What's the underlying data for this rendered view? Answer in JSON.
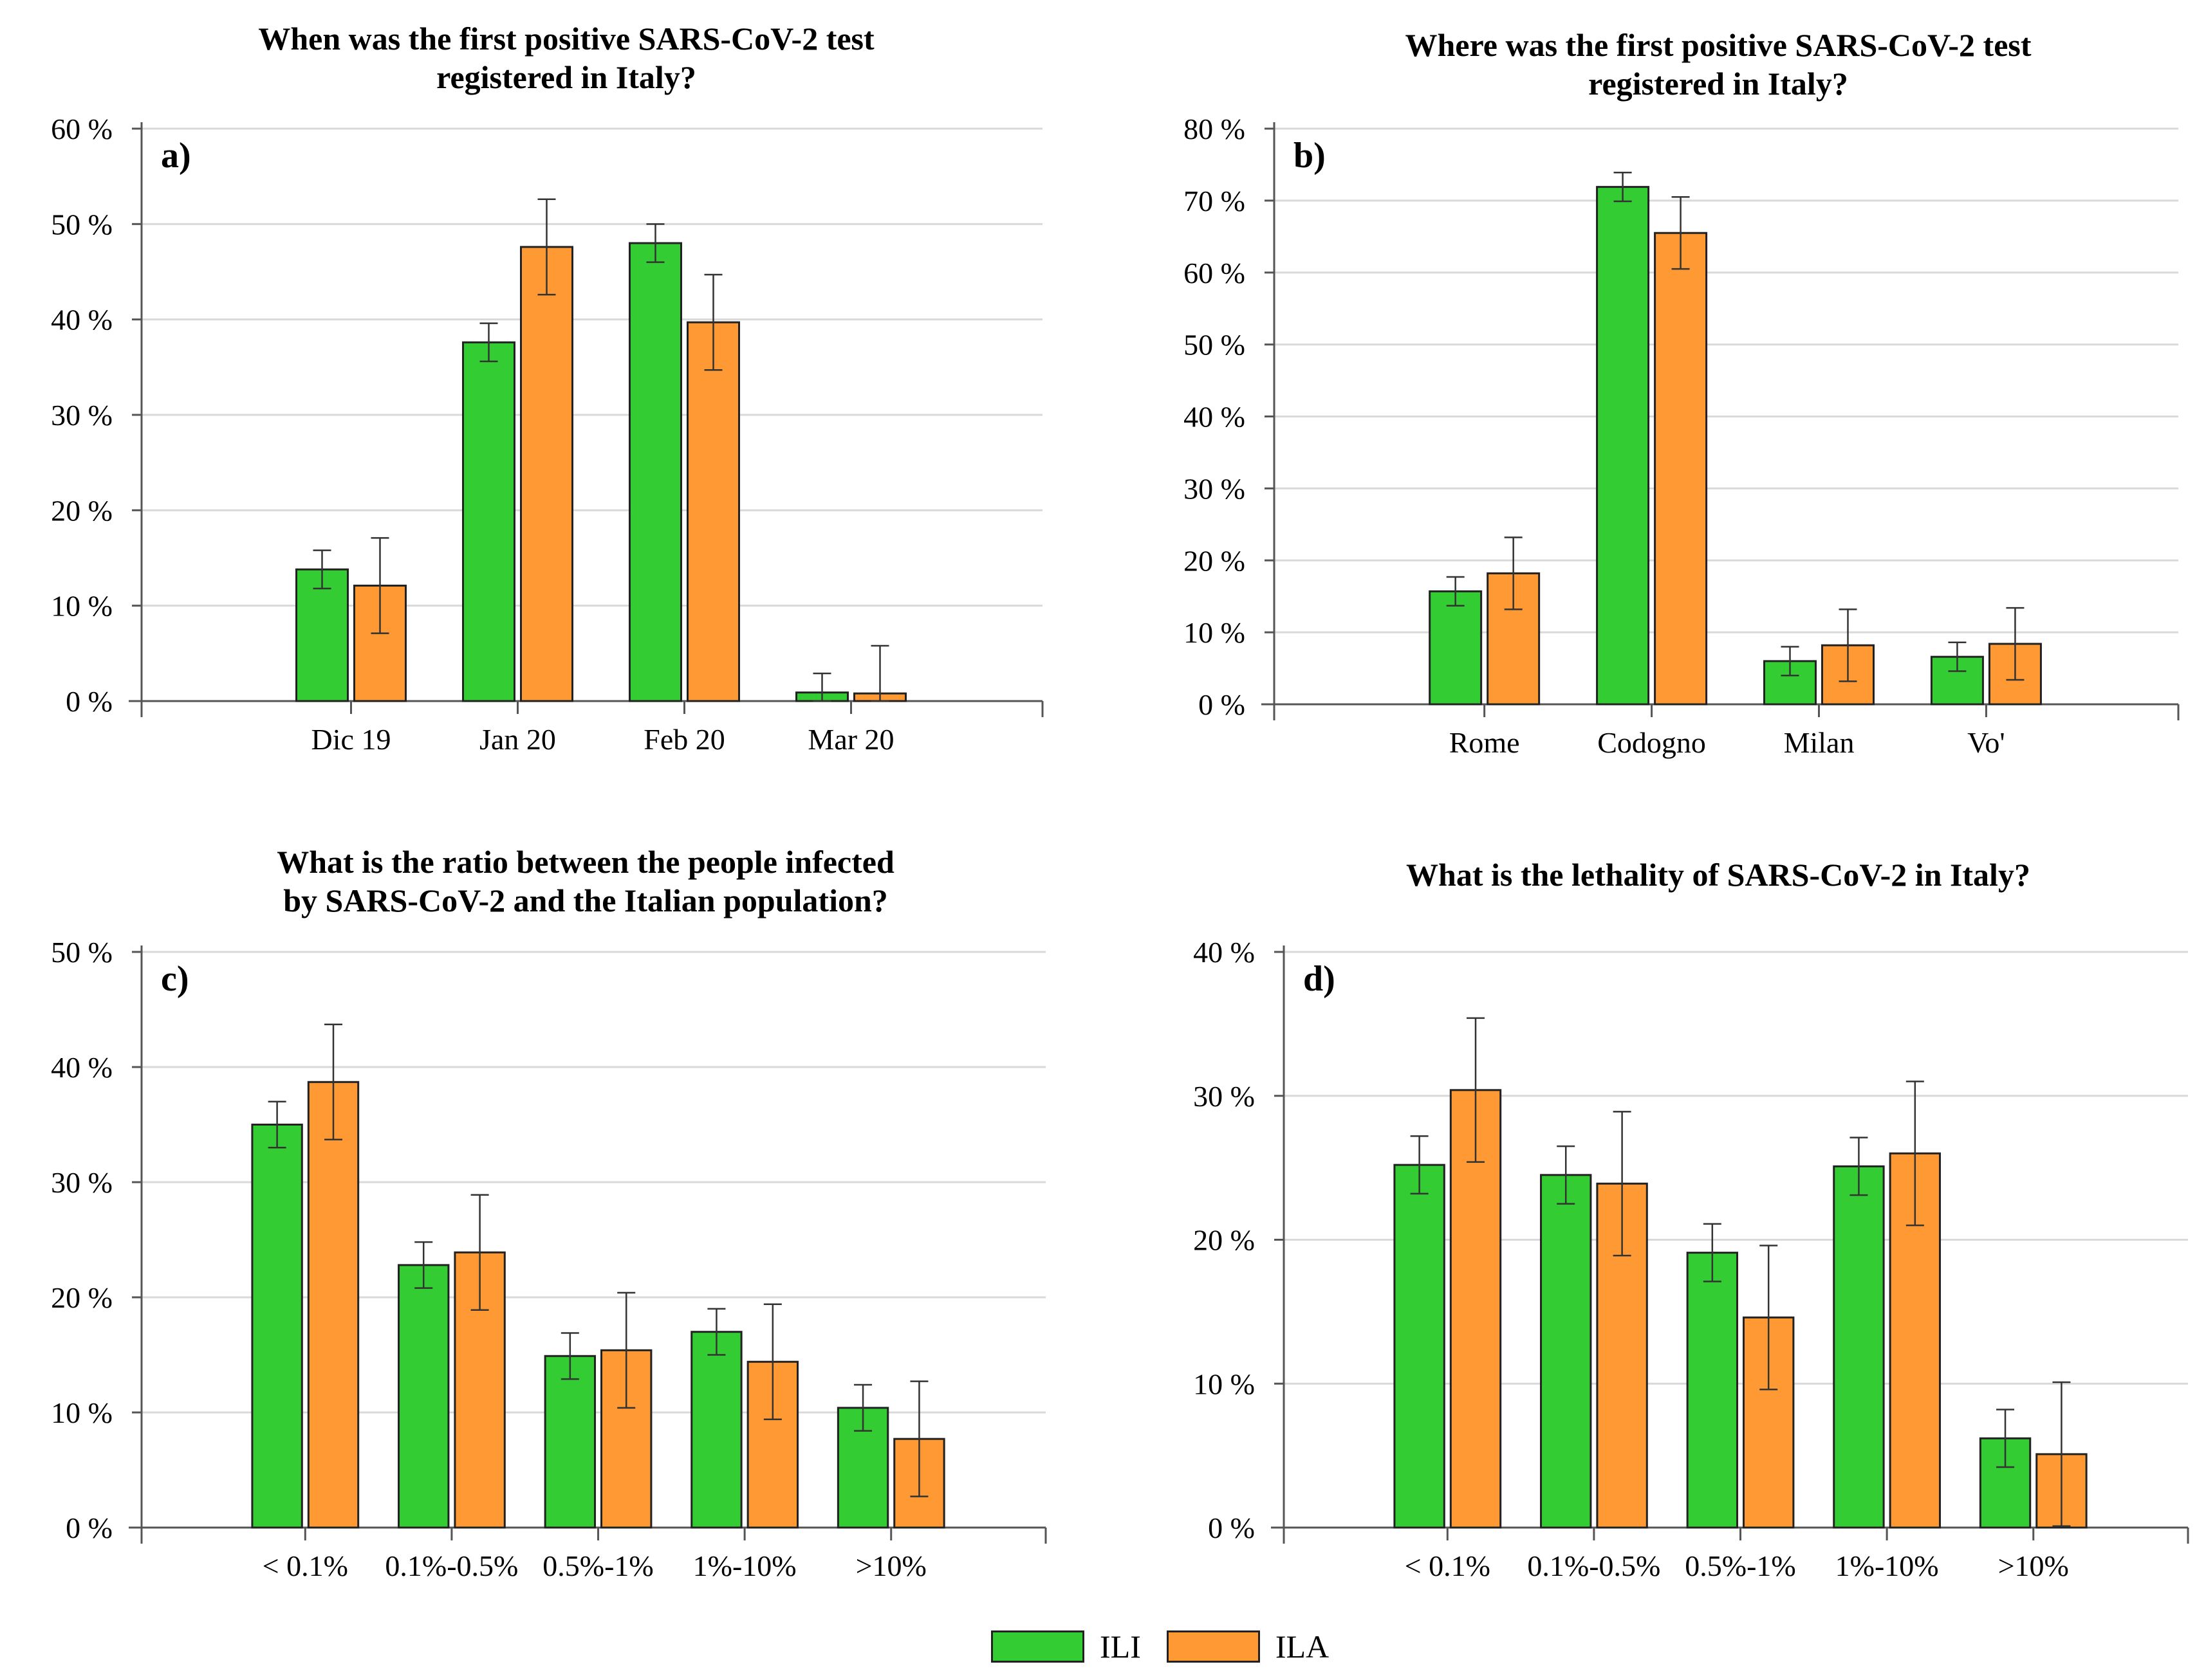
{
  "colors": {
    "ILI": "#33cc33",
    "ILA": "#ff9933",
    "grid": "#d9d9d9",
    "axis": "#555555",
    "bar_edge": "#222222"
  },
  "legend": {
    "items": [
      {
        "key": "ILI",
        "label": "ILI"
      },
      {
        "key": "ILA",
        "label": "ILA"
      }
    ]
  },
  "chart_data": [
    {
      "id": "a",
      "type": "bar",
      "panel_label": "a)",
      "title": [
        "When was the first positive SARS-CoV-2 test",
        "registered in Italy?"
      ],
      "categories": [
        "Dic 19",
        "Jan 20",
        "Feb 20",
        "Mar 20"
      ],
      "ylim": [
        0,
        60
      ],
      "yticks": [
        0,
        10,
        20,
        30,
        40,
        50,
        60
      ],
      "ytick_labels": [
        "0 %",
        "10 %",
        "20 %",
        "30 %",
        "40 %",
        "50 %",
        "60 %"
      ],
      "grid": true,
      "series": [
        {
          "name": "ILI",
          "values": [
            13.8,
            37.6,
            48.0,
            0.9
          ],
          "errors": [
            2.0,
            2.0,
            2.0,
            2.0
          ]
        },
        {
          "name": "ILA",
          "values": [
            12.1,
            47.6,
            39.7,
            0.8
          ],
          "errors": [
            5.0,
            5.0,
            5.0,
            5.0
          ]
        }
      ]
    },
    {
      "id": "b",
      "type": "bar",
      "panel_label": "b)",
      "title": [
        "Where was the first positive SARS-CoV-2 test",
        "registered in Italy?"
      ],
      "categories": [
        "Rome",
        "Codogno",
        "Milan",
        "Vo'"
      ],
      "ylim": [
        0,
        80
      ],
      "yticks": [
        0,
        10,
        20,
        30,
        40,
        50,
        60,
        70,
        80
      ],
      "ytick_labels": [
        "0 %",
        "10 %",
        "20 %",
        "30 %",
        "40 %",
        "50 %",
        "60 %",
        "70 %",
        "80 %"
      ],
      "grid": true,
      "series": [
        {
          "name": "ILI",
          "values": [
            15.7,
            71.9,
            6.0,
            6.6
          ],
          "errors": [
            2.0,
            2.0,
            2.0,
            2.0
          ]
        },
        {
          "name": "ILA",
          "values": [
            18.2,
            65.5,
            8.2,
            8.4
          ],
          "errors": [
            5.0,
            5.0,
            5.0,
            5.0
          ]
        }
      ]
    },
    {
      "id": "c",
      "type": "bar",
      "panel_label": "c)",
      "title": [
        "What is the ratio between the people infected",
        "by SARS-CoV-2 and the Italian population?"
      ],
      "categories": [
        "< 0.1%",
        "0.1%-0.5%",
        "0.5%-1%",
        "1%-10%",
        ">10%"
      ],
      "ylim": [
        0,
        50
      ],
      "yticks": [
        0,
        10,
        20,
        30,
        40,
        50
      ],
      "ytick_labels": [
        "0 %",
        "10 %",
        "20 %",
        "30 %",
        "40 %",
        "50 %"
      ],
      "grid": true,
      "series": [
        {
          "name": "ILI",
          "values": [
            35.0,
            22.8,
            14.9,
            17.0,
            10.4
          ],
          "errors": [
            2.0,
            2.0,
            2.0,
            2.0,
            2.0
          ]
        },
        {
          "name": "ILA",
          "values": [
            38.7,
            23.9,
            15.4,
            14.4,
            7.7
          ],
          "errors": [
            5.0,
            5.0,
            5.0,
            5.0,
            5.0
          ]
        }
      ]
    },
    {
      "id": "d",
      "type": "bar",
      "panel_label": "d)",
      "title": [
        "What is the lethality of SARS-CoV-2 in Italy?"
      ],
      "categories": [
        "< 0.1%",
        "0.1%-0.5%",
        "0.5%-1%",
        "1%-10%",
        ">10%"
      ],
      "ylim": [
        0,
        40
      ],
      "yticks": [
        0,
        10,
        20,
        30,
        40
      ],
      "ytick_labels": [
        "0 %",
        "10 %",
        "20 %",
        "30 %",
        "40 %"
      ],
      "grid": true,
      "series": [
        {
          "name": "ILI",
          "values": [
            25.2,
            24.5,
            19.1,
            25.1,
            6.2
          ],
          "errors": [
            2.0,
            2.0,
            2.0,
            2.0,
            2.0
          ]
        },
        {
          "name": "ILA",
          "values": [
            30.4,
            23.9,
            14.6,
            26.0,
            5.1
          ],
          "errors": [
            5.0,
            5.0,
            5.0,
            5.0,
            5.0
          ]
        }
      ]
    }
  ]
}
